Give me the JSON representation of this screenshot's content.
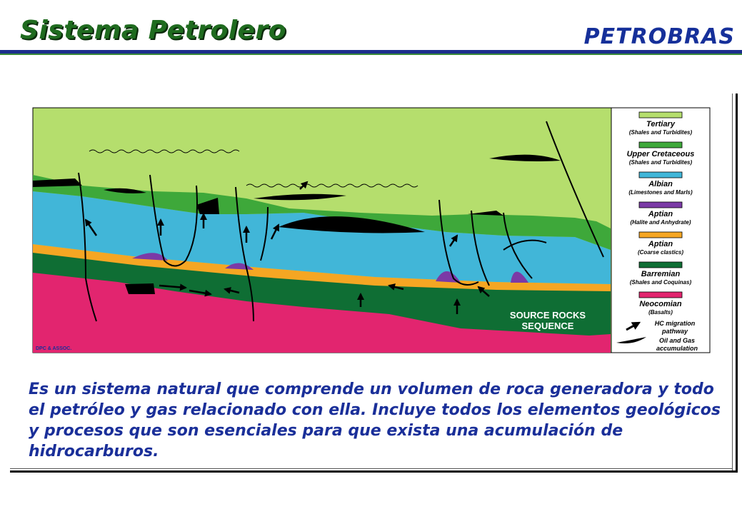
{
  "header": {
    "title": "Sistema Petrolero",
    "logo": "PETROBRAS"
  },
  "diagram": {
    "source_rocks_line1": "SOURCE ROCKS",
    "source_rocks_line2": "SEQUENCE",
    "credit": "DPC & ASSOC.",
    "legend": [
      {
        "name": "Tertiary",
        "sub": "(Shales and Turbidites)",
        "color": "#b5de6d"
      },
      {
        "name": "Upper Cretaceous",
        "sub": "(Shales and Turbidites)",
        "color": "#3ea83a"
      },
      {
        "name": "Albian",
        "sub": "(Limestones and Marls)",
        "color": "#41b6d8"
      },
      {
        "name": "Aptian",
        "sub": "(Halite and Anhydrate)",
        "color": "#7b3aa6"
      },
      {
        "name": "Aptian",
        "sub": "(Coarse clastics)",
        "color": "#f5a623"
      },
      {
        "name": "Barremian",
        "sub": "(Shales and Coquinas)",
        "color": "#0f6e34"
      },
      {
        "name": "Neocomian",
        "sub": "(Basalts)",
        "color": "#e2256f"
      }
    ],
    "legend_migration": [
      "HC migration",
      "pathway"
    ],
    "legend_accumulation": [
      "Oil and Gas",
      "accumulation"
    ]
  },
  "description": "Es un sistema natural que comprende un volumen de roca generadora y todo el petróleo y gas relacionado con ella. Incluye todos los elementos geológicos y procesos  que son esenciales para que exista una acumulación de hidrocarburos."
}
